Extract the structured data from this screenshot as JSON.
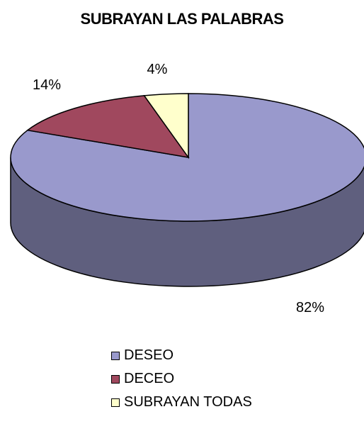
{
  "chart_data": {
    "type": "pie",
    "title": "SUBRAYAN LAS PALABRAS",
    "slices": [
      {
        "label": "DESEO",
        "value": 82,
        "data_label": "82%",
        "color": "#9999cc"
      },
      {
        "label": "DECEO",
        "value": 14,
        "data_label": "14%",
        "color": "#a0485e"
      },
      {
        "label": "SUBRAYAN TODAS",
        "value": 4,
        "data_label": "4%",
        "color": "#ffffcc"
      }
    ],
    "legend_position": "bottom",
    "style": "3d-pie"
  }
}
